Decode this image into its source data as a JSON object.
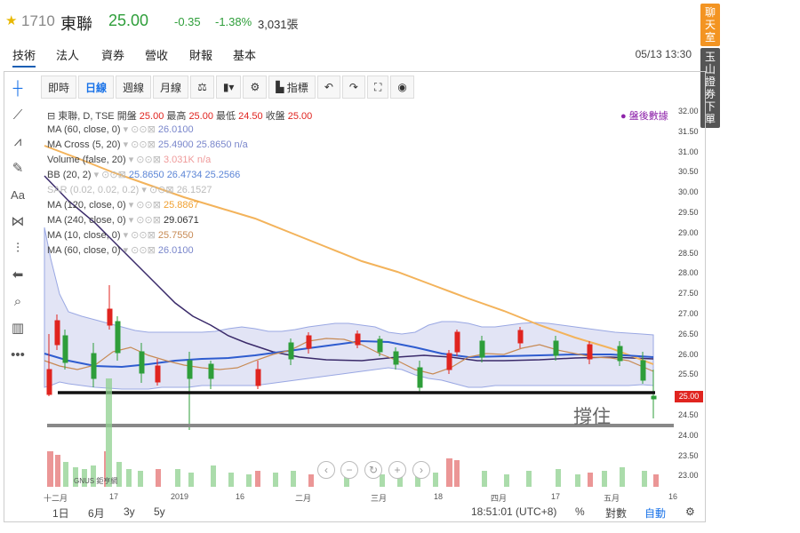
{
  "header": {
    "code": "1710",
    "name": "東聯",
    "price": "25.00",
    "change": "-0.35",
    "change_pct": "-1.38%",
    "volume": "3,031張"
  },
  "tabs": [
    {
      "label": "技術",
      "active": true
    },
    {
      "label": "法人"
    },
    {
      "label": "資券"
    },
    {
      "label": "營收"
    },
    {
      "label": "財報"
    },
    {
      "label": "基本"
    }
  ],
  "datetime": "05/13 13:30",
  "side_buttons": [
    "聊天室",
    "玉山證券下單"
  ],
  "toolbar": {
    "b1": "即時",
    "b2": "日線",
    "b3": "週線",
    "b4": "月線",
    "b5": "指標"
  },
  "legend": {
    "main": {
      "label": "東聯, D, TSE",
      "open_label": "開盤",
      "open": "25.00",
      "high_label": "最高",
      "high": "25.00",
      "low_label": "最低",
      "low": "24.50",
      "close_label": "收盤",
      "close": "25.00"
    },
    "rows": [
      {
        "label": "MA (60, close, 0)",
        "values": "26.0100",
        "color": "#7986cb"
      },
      {
        "label": "MA Cross (5, 20)",
        "values": "25.4900  25.8650  n/a",
        "color": "#7986cb"
      },
      {
        "label": "Volume (false, 20)",
        "values": "3.031K  n/a",
        "color": "#ef9a9a"
      },
      {
        "label": "BB (20, 2)",
        "values": "25.8650  26.4734  25.2566",
        "color": "#5c85d6"
      },
      {
        "label": "SAR (0.02, 0.02, 0.2)",
        "values": "26.1527",
        "color": "#bbbbbb"
      },
      {
        "label": "MA (120, close, 0)",
        "values": "25.8867",
        "color": "#f0a030"
      },
      {
        "label": "MA (240, close, 0)",
        "values": "29.0671",
        "color": "#333333"
      },
      {
        "label": "MA (10, close, 0)",
        "values": "25.7550",
        "color": "#c78a54"
      },
      {
        "label": "MA (60, close, 0)",
        "values": "26.0100",
        "color": "#7986cb"
      }
    ]
  },
  "after_hours": "● 盤後數據",
  "annotation": "撐住",
  "y_axis": {
    "ticks": [
      "32.00",
      "31.50",
      "31.00",
      "30.50",
      "30.00",
      "29.50",
      "29.00",
      "28.50",
      "28.00",
      "27.50",
      "27.00",
      "26.50",
      "26.00",
      "25.50",
      "25.00",
      "24.50",
      "24.00",
      "23.50",
      "23.00"
    ],
    "current": "25.00"
  },
  "x_axis": [
    "十二月",
    "17",
    "2019",
    "16",
    "二月",
    "三月",
    "18",
    "四月",
    "17",
    "五月",
    "16"
  ],
  "bottom_bar": {
    "r1": "1日",
    "r2": "6月",
    "r3": "3y",
    "r4": "5y",
    "time": "18:51:01 (UTC+8)",
    "pct": "%",
    "log": "對數",
    "auto": "自動"
  },
  "colors": {
    "up": "#e0241f",
    "down": "#2e9e3a",
    "accent": "#1a73e8"
  }
}
